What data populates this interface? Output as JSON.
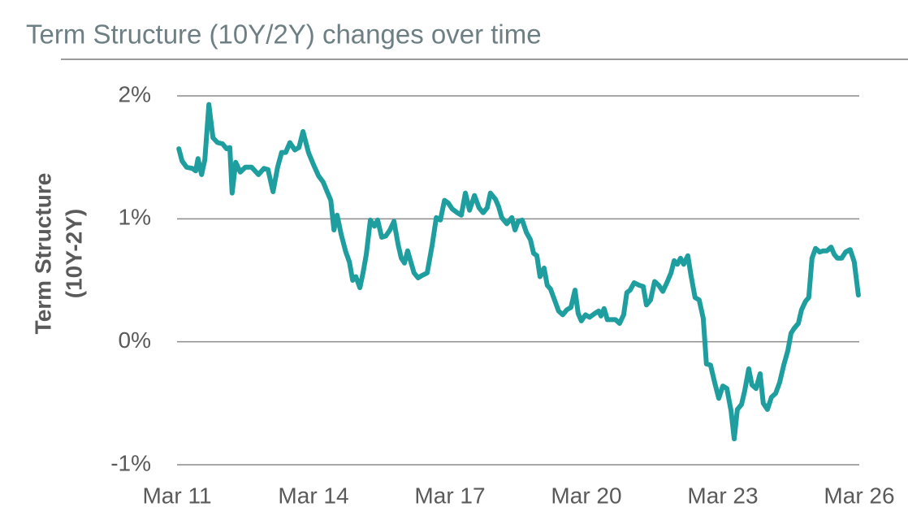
{
  "chart_data": {
    "type": "line",
    "title": "Term Structure (10Y/2Y) changes over time",
    "y_label": [
      "Term Structure",
      "(10Y-2Y)"
    ],
    "xlim": [
      2011.17,
      2026.17
    ],
    "xticks": [
      {
        "value": 2011.17,
        "label": "Mar 11"
      },
      {
        "value": 2014.17,
        "label": "Mar 14"
      },
      {
        "value": 2017.17,
        "label": "Mar 17"
      },
      {
        "value": 2020.17,
        "label": "Mar 20"
      },
      {
        "value": 2023.17,
        "label": "Mar 23"
      },
      {
        "value": 2026.17,
        "label": "Mar 26"
      }
    ],
    "ylim": [
      -1,
      2
    ],
    "yticks": [
      {
        "value": 2,
        "label": "2%"
      },
      {
        "value": 1,
        "label": "1%"
      },
      {
        "value": 0,
        "label": "0%"
      },
      {
        "value": -1,
        "label": "-1%"
      }
    ],
    "grid": true,
    "x": [
      2011.21,
      2011.28,
      2011.38,
      2011.51,
      2011.58,
      2011.63,
      2011.71,
      2011.78,
      2011.87,
      2011.96,
      2012.06,
      2012.17,
      2012.26,
      2012.33,
      2012.38,
      2012.46,
      2012.56,
      2012.67,
      2012.81,
      2012.96,
      2013.08,
      2013.17,
      2013.28,
      2013.38,
      2013.47,
      2013.56,
      2013.65,
      2013.76,
      2013.85,
      2013.94,
      2014.06,
      2014.17,
      2014.28,
      2014.38,
      2014.46,
      2014.55,
      2014.62,
      2014.69,
      2014.78,
      2014.88,
      2014.96,
      2015.03,
      2015.1,
      2015.19,
      2015.26,
      2015.33,
      2015.42,
      2015.51,
      2015.58,
      2015.67,
      2015.76,
      2015.85,
      2015.94,
      2016.03,
      2016.1,
      2016.17,
      2016.24,
      2016.31,
      2016.38,
      2016.47,
      2016.56,
      2016.67,
      2016.78,
      2016.87,
      2016.96,
      2017.05,
      2017.13,
      2017.22,
      2017.33,
      2017.42,
      2017.51,
      2017.6,
      2017.71,
      2017.81,
      2017.9,
      2017.99,
      2018.06,
      2018.17,
      2018.24,
      2018.31,
      2018.42,
      2018.53,
      2018.6,
      2018.67,
      2018.76,
      2018.85,
      2018.94,
      2019.01,
      2019.08,
      2019.15,
      2019.24,
      2019.31,
      2019.38,
      2019.47,
      2019.56,
      2019.65,
      2019.74,
      2019.83,
      2019.92,
      2019.99,
      2020.06,
      2020.15,
      2020.24,
      2020.35,
      2020.44,
      2020.49,
      2020.56,
      2020.63,
      2020.72,
      2020.81,
      2020.9,
      2020.99,
      2021.06,
      2021.13,
      2021.22,
      2021.33,
      2021.42,
      2021.49,
      2021.58,
      2021.67,
      2021.76,
      2021.85,
      2021.94,
      2022.03,
      2022.1,
      2022.17,
      2022.24,
      2022.31,
      2022.4,
      2022.47,
      2022.56,
      2022.65,
      2022.74,
      2022.81,
      2022.9,
      2022.99,
      2023.08,
      2023.17,
      2023.26,
      2023.35,
      2023.42,
      2023.49,
      2023.58,
      2023.65,
      2023.74,
      2023.81,
      2023.9,
      2023.99,
      2024.06,
      2024.15,
      2024.24,
      2024.33,
      2024.42,
      2024.51,
      2024.6,
      2024.67,
      2024.74,
      2024.83,
      2024.9,
      2024.99,
      2025.06,
      2025.13,
      2025.21,
      2025.3,
      2025.38,
      2025.46,
      2025.55,
      2025.62,
      2025.69,
      2025.78,
      2025.87,
      2025.97,
      2026.06,
      2026.15
    ],
    "series": [
      {
        "name": "Term Structure (10Y-2Y)",
        "color": "#1f9e9f",
        "values": [
          1.57,
          1.47,
          1.42,
          1.41,
          1.39,
          1.49,
          1.36,
          1.48,
          1.93,
          1.66,
          1.62,
          1.61,
          1.57,
          1.58,
          1.21,
          1.46,
          1.38,
          1.42,
          1.42,
          1.36,
          1.41,
          1.4,
          1.22,
          1.42,
          1.54,
          1.54,
          1.62,
          1.56,
          1.58,
          1.71,
          1.54,
          1.44,
          1.35,
          1.3,
          1.23,
          1.15,
          0.91,
          1.03,
          0.87,
          0.73,
          0.65,
          0.5,
          0.53,
          0.44,
          0.56,
          0.71,
          0.99,
          0.94,
          0.99,
          0.85,
          0.86,
          0.91,
          0.98,
          0.79,
          0.68,
          0.64,
          0.74,
          0.65,
          0.56,
          0.52,
          0.54,
          0.56,
          0.79,
          1.01,
          0.99,
          1.15,
          1.13,
          1.08,
          1.05,
          1.03,
          1.21,
          1.07,
          1.19,
          1.09,
          1.05,
          1.09,
          1.21,
          1.16,
          1.1,
          1.01,
          0.96,
          1.01,
          0.91,
          0.98,
          0.99,
          0.89,
          0.83,
          0.72,
          0.7,
          0.53,
          0.6,
          0.46,
          0.43,
          0.34,
          0.25,
          0.22,
          0.26,
          0.28,
          0.42,
          0.23,
          0.17,
          0.22,
          0.2,
          0.23,
          0.25,
          0.21,
          0.27,
          0.18,
          0.18,
          0.18,
          0.15,
          0.22,
          0.4,
          0.42,
          0.48,
          0.46,
          0.45,
          0.3,
          0.34,
          0.49,
          0.46,
          0.41,
          0.48,
          0.56,
          0.66,
          0.63,
          0.68,
          0.63,
          0.7,
          0.54,
          0.36,
          0.34,
          0.19,
          -0.18,
          -0.19,
          -0.33,
          -0.46,
          -0.36,
          -0.38,
          -0.56,
          -0.79,
          -0.55,
          -0.51,
          -0.4,
          -0.22,
          -0.35,
          -0.38,
          -0.26,
          -0.5,
          -0.55,
          -0.45,
          -0.42,
          -0.33,
          -0.19,
          -0.07,
          0.07,
          0.11,
          0.15,
          0.26,
          0.33,
          0.36,
          0.68,
          0.76,
          0.73,
          0.74,
          0.74,
          0.77,
          0.71,
          0.68,
          0.68,
          0.73,
          0.75,
          0.65,
          0.38
        ]
      }
    ]
  }
}
